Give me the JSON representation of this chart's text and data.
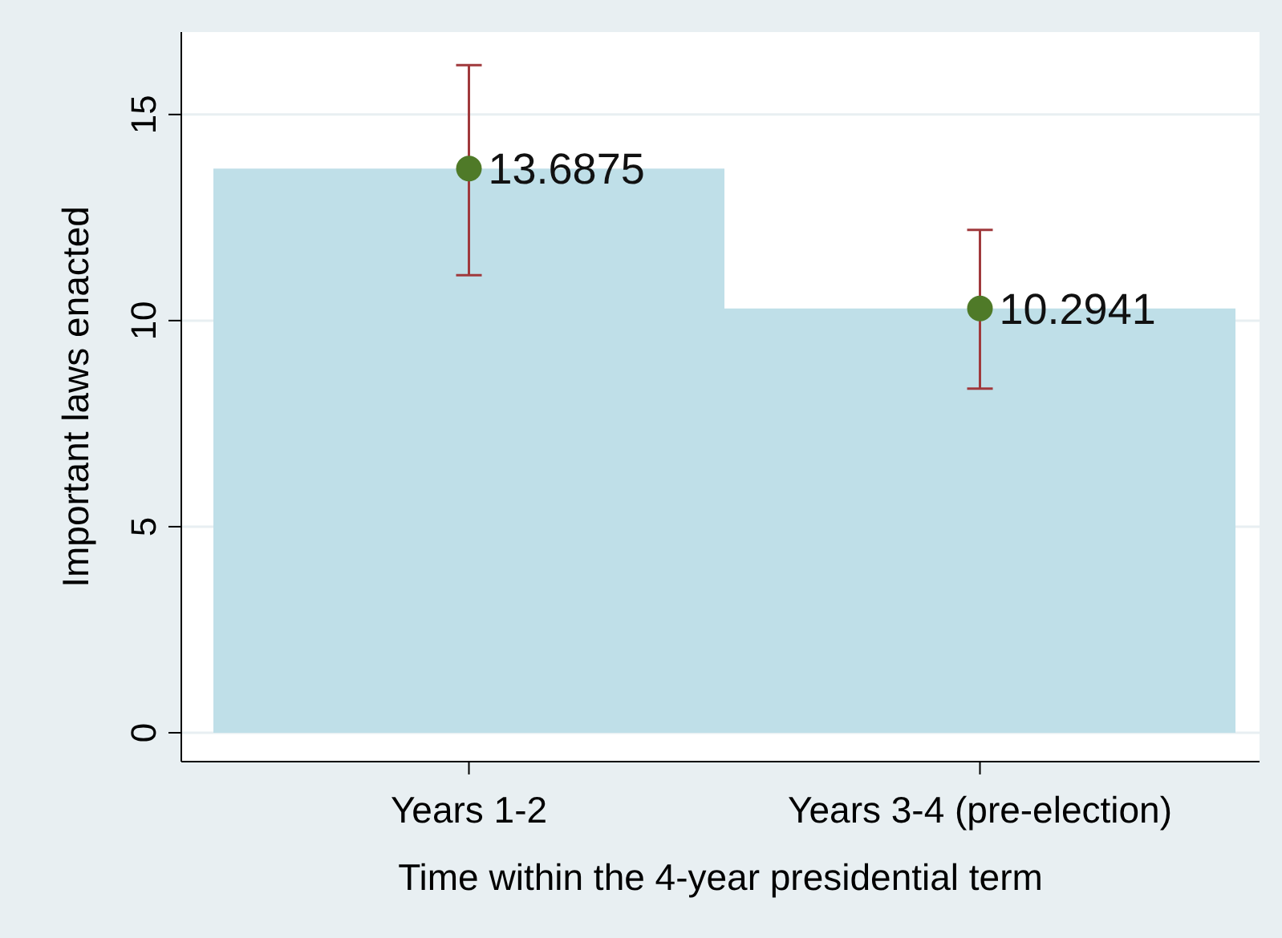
{
  "chart_data": {
    "type": "bar",
    "xlabel": "Time within the 4-year presidential term",
    "ylabel": "Important laws enacted",
    "categories": [
      "Years 1-2",
      "Years 3-4 (pre-election)"
    ],
    "series": [
      {
        "color": "#bfdfe8",
        "values": [
          13.6875,
          10.2941
        ]
      },
      {
        "type": "scatter",
        "color": "#4f7a28",
        "values": [
          13.6875,
          10.2941
        ],
        "errors": [
          [
            11.1,
            16.2
          ],
          [
            8.35,
            12.2
          ]
        ],
        "value_labels": [
          "13.6875",
          "10.2941"
        ]
      }
    ],
    "ylim": [
      -0.7,
      17
    ],
    "yticks": [
      0,
      5,
      10,
      15
    ],
    "grid": "y",
    "marker": "circle"
  }
}
